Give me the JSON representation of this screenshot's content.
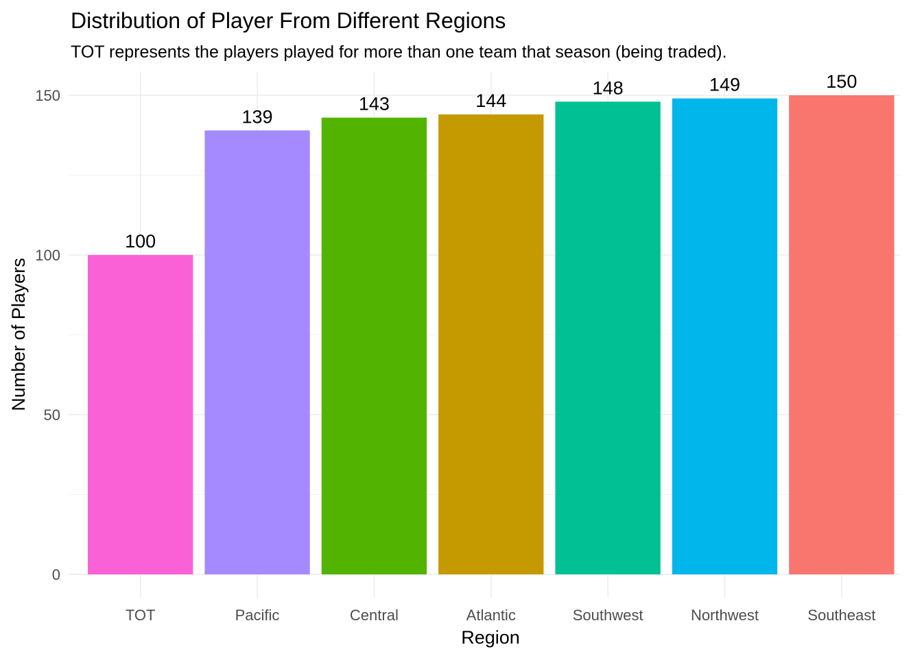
{
  "chart_data": {
    "type": "bar",
    "title": "Distribution of Player From Different Regions",
    "subtitle": "TOT represents the players played for more than one team that season (being traded).",
    "xlabel": "Region",
    "ylabel": "Number of Players",
    "categories": [
      "TOT",
      "Pacific",
      "Central",
      "Atlantic",
      "Southwest",
      "Northwest",
      "Southeast"
    ],
    "values": [
      100,
      139,
      143,
      144,
      148,
      149,
      150
    ],
    "colors": [
      "#FB61D7",
      "#A58AFF",
      "#53B400",
      "#C49A00",
      "#00C094",
      "#00B6EB",
      "#F8766D"
    ],
    "ylim": [
      0,
      150
    ],
    "yticks": [
      0,
      50,
      100,
      150
    ],
    "grid": true,
    "legend": "none"
  }
}
